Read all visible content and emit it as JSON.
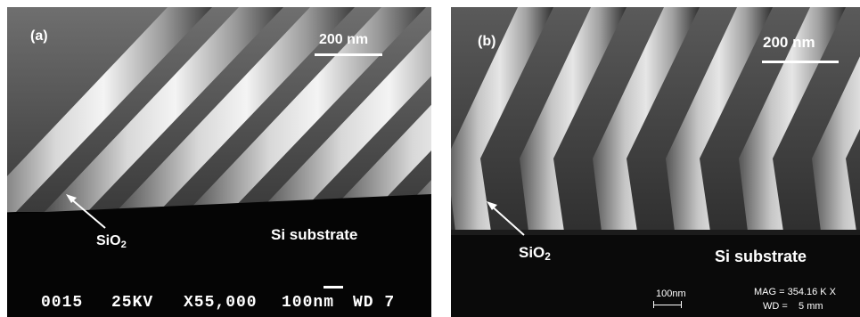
{
  "panel_a": {
    "label": "(a)",
    "scalebar": "200 nm",
    "oxide_label": "SiO",
    "oxide_sub": "2",
    "substrate_label": "Si substrate",
    "databar": {
      "id": "0015",
      "voltage": "25KV",
      "magnification": "X55,000",
      "scale": "100nm",
      "wd": "WD 7"
    }
  },
  "panel_b": {
    "label": "(b)",
    "scalebar": "200 nm",
    "oxide_label": "SiO",
    "oxide_sub": "2",
    "substrate_label": "Si substrate",
    "scale_small": "100nm",
    "mag": "MAG = 354.16 K X",
    "wd": "WD =    5 mm"
  }
}
